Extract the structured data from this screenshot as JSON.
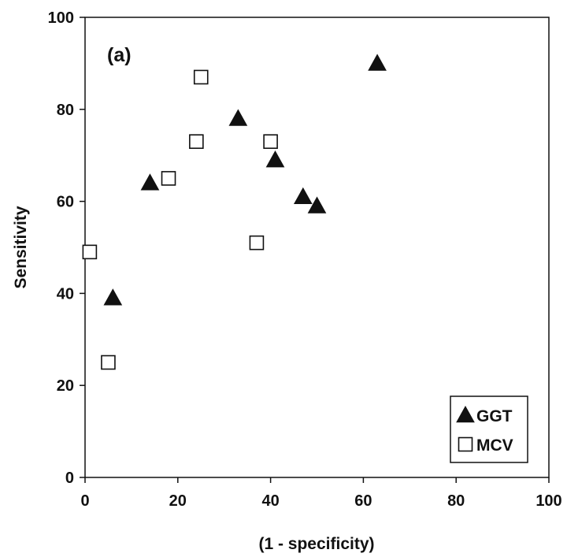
{
  "chart_data": {
    "type": "scatter",
    "panel_label": "(a)",
    "xlabel": "(1 - specificity)",
    "ylabel": "Sensitivity",
    "xlim": [
      0,
      100
    ],
    "ylim": [
      0,
      100
    ],
    "x_ticks": [
      0,
      20,
      40,
      60,
      80,
      100
    ],
    "y_ticks": [
      0,
      20,
      40,
      60,
      80,
      100
    ],
    "grid": false,
    "legend_position": "bottom-right",
    "series": [
      {
        "name": "GGT",
        "marker": "filled-triangle",
        "color": "#111111",
        "points": [
          {
            "x": 6,
            "y": 39
          },
          {
            "x": 14,
            "y": 64
          },
          {
            "x": 33,
            "y": 78
          },
          {
            "x": 41,
            "y": 69
          },
          {
            "x": 47,
            "y": 61
          },
          {
            "x": 50,
            "y": 59
          },
          {
            "x": 63,
            "y": 90
          }
        ]
      },
      {
        "name": "MCV",
        "marker": "open-square",
        "color": "#111111",
        "points": [
          {
            "x": 1,
            "y": 49
          },
          {
            "x": 5,
            "y": 25
          },
          {
            "x": 18,
            "y": 65
          },
          {
            "x": 24,
            "y": 73
          },
          {
            "x": 25,
            "y": 87
          },
          {
            "x": 37,
            "y": 51
          },
          {
            "x": 40,
            "y": 73
          }
        ]
      }
    ]
  }
}
